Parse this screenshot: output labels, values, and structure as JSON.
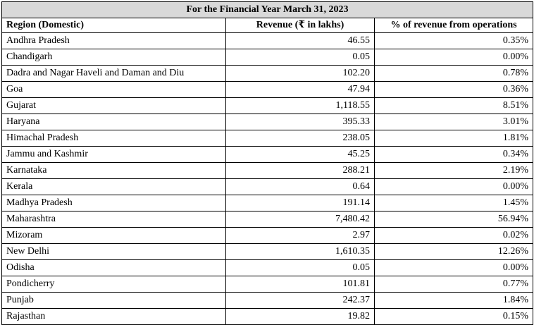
{
  "table": {
    "caption": "For the Financial Year March 31, 2023",
    "headers": {
      "region": "Region (Domestic)",
      "revenue": "Revenue (₹ in lakhs)",
      "percent": "% of revenue from operations"
    },
    "rows": [
      {
        "region": "Andhra Pradesh",
        "revenue": "46.55",
        "percent": "0.35%"
      },
      {
        "region": "Chandigarh",
        "revenue": "0.05",
        "percent": "0.00%"
      },
      {
        "region": "Dadra and Nagar Haveli and Daman and Diu",
        "revenue": "102.20",
        "percent": "0.78%"
      },
      {
        "region": "Goa",
        "revenue": "47.94",
        "percent": "0.36%"
      },
      {
        "region": "Gujarat",
        "revenue": "1,118.55",
        "percent": "8.51%"
      },
      {
        "region": "Haryana",
        "revenue": "395.33",
        "percent": "3.01%"
      },
      {
        "region": "Himachal Pradesh",
        "revenue": "238.05",
        "percent": "1.81%"
      },
      {
        "region": "Jammu and Kashmir",
        "revenue": "45.25",
        "percent": "0.34%"
      },
      {
        "region": "Karnataka",
        "revenue": "288.21",
        "percent": "2.19%"
      },
      {
        "region": "Kerala",
        "revenue": "0.64",
        "percent": "0.00%"
      },
      {
        "region": "Madhya Pradesh",
        "revenue": "191.14",
        "percent": "1.45%"
      },
      {
        "region": "Maharashtra",
        "revenue": "7,480.42",
        "percent": "56.94%"
      },
      {
        "region": "Mizoram",
        "revenue": "2.97",
        "percent": "0.02%"
      },
      {
        "region": "New Delhi",
        "revenue": "1,610.35",
        "percent": "12.26%"
      },
      {
        "region": "Odisha",
        "revenue": "0.05",
        "percent": "0.00%"
      },
      {
        "region": "Pondicherry",
        "revenue": "101.81",
        "percent": "0.77%"
      },
      {
        "region": "Punjab",
        "revenue": "242.37",
        "percent": "1.84%"
      },
      {
        "region": "Rajasthan",
        "revenue": "19.82",
        "percent": "0.15%"
      }
    ]
  },
  "colors": {
    "caption_background": "#d9d9d9",
    "border": "#000000",
    "text": "#000000"
  }
}
